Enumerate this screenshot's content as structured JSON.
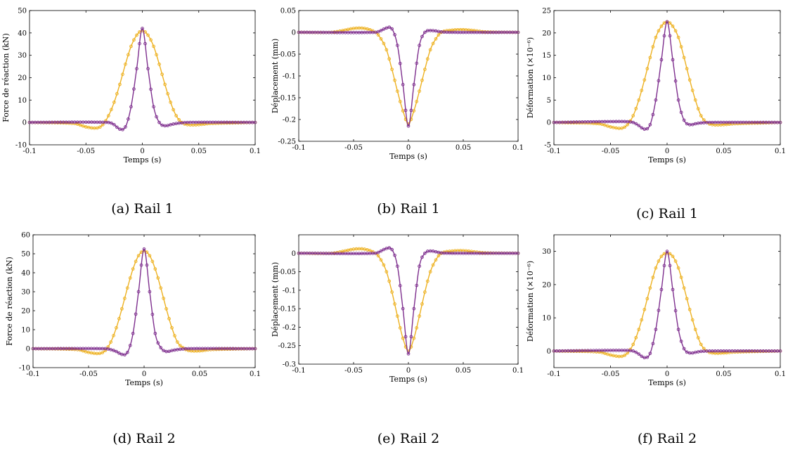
{
  "colors": {
    "series_a": "#EDB120",
    "series_b": "#7E2F8E"
  },
  "chart_data": [
    {
      "type": "line",
      "caption": "(a) Rail 1",
      "xlabel": "Temps (s)",
      "ylabel": "Force de réaction (kN)",
      "xlim": [
        -0.1,
        0.1
      ],
      "ylim": [
        -10,
        50
      ],
      "xticks": [
        -0.1,
        -0.05,
        0,
        0.05,
        0.1
      ],
      "xticklabels": [
        "-0.1",
        "-0.05",
        "0",
        "0.05",
        "0.1"
      ],
      "yticks": [
        -10,
        0,
        10,
        20,
        30,
        40,
        50
      ],
      "yticklabels": [
        "-10",
        "0",
        "10",
        "20",
        "30",
        "40",
        "50"
      ],
      "series": [
        {
          "x": [
            -0.1,
            -0.06,
            -0.05,
            -0.04,
            -0.035,
            -0.03,
            -0.025,
            -0.02,
            -0.015,
            -0.01,
            -0.005,
            0,
            0.005,
            0.01,
            0.015,
            0.02,
            0.025,
            0.03,
            0.035,
            0.04,
            0.05,
            0.06,
            0.1
          ],
          "y": [
            0,
            -0.5,
            -2,
            -2.5,
            -1,
            3,
            9,
            17,
            26,
            34,
            39,
            41,
            39,
            34,
            26,
            17,
            9,
            3,
            0,
            -1,
            -1,
            -0.5,
            0
          ]
        },
        {
          "x": [
            -0.1,
            -0.03,
            -0.025,
            -0.02,
            -0.015,
            -0.01,
            -0.005,
            0,
            0.005,
            0.01,
            0.015,
            0.02,
            0.025,
            0.03,
            0.04,
            0.1
          ],
          "y": [
            0,
            0,
            -1,
            -3,
            -2,
            7,
            24,
            42,
            24,
            7,
            0,
            -1.5,
            -1,
            -0.5,
            0,
            0
          ]
        }
      ]
    },
    {
      "type": "line",
      "caption": "(b) Rail 1",
      "xlabel": "Temps (s)",
      "ylabel": "Déplacement (mm)",
      "xlim": [
        -0.1,
        0.1
      ],
      "ylim": [
        -0.25,
        0.05
      ],
      "xticks": [
        -0.1,
        -0.05,
        0,
        0.05,
        0.1
      ],
      "xticklabels": [
        "-0.1",
        "-0.05",
        "0",
        "0.05",
        "0.1"
      ],
      "yticks": [
        -0.25,
        -0.2,
        -0.15,
        -0.1,
        -0.05,
        0,
        0.05
      ],
      "yticklabels": [
        "-0.25",
        "-0.2",
        "-0.15",
        "-0.1",
        "-0.05",
        "0",
        "0.05"
      ],
      "series": [
        {
          "x": [
            -0.1,
            -0.07,
            -0.06,
            -0.05,
            -0.04,
            -0.03,
            -0.025,
            -0.02,
            -0.015,
            -0.01,
            -0.005,
            0,
            0.005,
            0.01,
            0.015,
            0.02,
            0.025,
            0.03,
            0.04,
            0.05,
            0.06,
            0.07,
            0.1
          ],
          "y": [
            0,
            0,
            0.004,
            0.009,
            0.009,
            0.0,
            -0.015,
            -0.04,
            -0.085,
            -0.135,
            -0.18,
            -0.21,
            -0.18,
            -0.135,
            -0.085,
            -0.04,
            -0.015,
            0.0,
            0.005,
            0.006,
            0.004,
            0.001,
            0
          ]
        },
        {
          "x": [
            -0.1,
            -0.03,
            -0.025,
            -0.02,
            -0.015,
            -0.01,
            -0.005,
            0,
            0.005,
            0.01,
            0.015,
            0.02,
            0.025,
            0.03,
            0.04,
            0.1
          ],
          "y": [
            0,
            0,
            0.004,
            0.01,
            0.008,
            -0.03,
            -0.12,
            -0.215,
            -0.12,
            -0.03,
            0.0,
            0.004,
            0.003,
            0.001,
            0,
            0
          ]
        }
      ]
    },
    {
      "type": "line",
      "caption": "(c) Rail 1",
      "xlabel": "Temps (s)",
      "ylabel": "Déformation (×10⁻⁶)",
      "xlim": [
        -0.1,
        0.1
      ],
      "ylim": [
        -5,
        25
      ],
      "xticks": [
        -0.1,
        -0.05,
        0,
        0.05,
        0.1
      ],
      "xticklabels": [
        "-0.1",
        "-0.05",
        "0",
        "0.05",
        "0.1"
      ],
      "yticks": [
        -5,
        0,
        5,
        10,
        15,
        20,
        25
      ],
      "yticklabels": [
        "-5",
        "0",
        "5",
        "10",
        "15",
        "20",
        "25"
      ],
      "series": [
        {
          "x": [
            -0.1,
            -0.06,
            -0.05,
            -0.04,
            -0.035,
            -0.03,
            -0.025,
            -0.02,
            -0.015,
            -0.01,
            -0.005,
            0,
            0.005,
            0.01,
            0.015,
            0.02,
            0.025,
            0.03,
            0.035,
            0.04,
            0.05,
            0.06,
            0.1
          ],
          "y": [
            0,
            -0.3,
            -1,
            -1.3,
            -0.5,
            1.5,
            5,
            9.5,
            14.5,
            19,
            21.5,
            22.5,
            21.5,
            19,
            14.5,
            9.5,
            5,
            1.5,
            0,
            -0.5,
            -0.5,
            -0.3,
            0
          ]
        },
        {
          "x": [
            -0.1,
            -0.04,
            -0.03,
            -0.025,
            -0.02,
            -0.015,
            -0.01,
            -0.005,
            0,
            0.005,
            0.01,
            0.015,
            0.02,
            0.025,
            0.03,
            0.04,
            0.1
          ],
          "y": [
            0,
            0.2,
            0,
            -0.7,
            -1.5,
            -0.5,
            5,
            14,
            22.5,
            14,
            5,
            0.5,
            -0.5,
            -0.3,
            -0.1,
            0,
            0
          ]
        }
      ]
    },
    {
      "type": "line",
      "caption": "(d) Rail 2",
      "xlabel": "Temps (s)",
      "ylabel": "Force de réaction (kN)",
      "xlim": [
        -0.1,
        0.1
      ],
      "ylim": [
        -10,
        60
      ],
      "xticks": [
        -0.1,
        -0.05,
        0,
        0.05,
        0.1
      ],
      "xticklabels": [
        "-0.1",
        "-0.05",
        "0",
        "0.05",
        "0.1"
      ],
      "yticks": [
        -10,
        0,
        10,
        20,
        30,
        40,
        50,
        60
      ],
      "yticklabels": [
        "-10",
        "0",
        "10",
        "20",
        "30",
        "40",
        "50",
        "60"
      ],
      "series": [
        {
          "x": [
            -0.1,
            -0.06,
            -0.05,
            -0.04,
            -0.035,
            -0.03,
            -0.025,
            -0.02,
            -0.015,
            -0.01,
            -0.005,
            0,
            0.005,
            0.01,
            0.015,
            0.02,
            0.025,
            0.03,
            0.035,
            0.04,
            0.05,
            0.06,
            0.1
          ],
          "y": [
            0,
            -0.5,
            -2,
            -2.5,
            -1,
            3.5,
            11,
            21,
            32,
            42,
            49,
            51.5,
            49,
            42,
            32,
            21,
            11,
            3.5,
            0.5,
            -1,
            -1.2,
            -0.5,
            0
          ]
        },
        {
          "x": [
            -0.1,
            -0.035,
            -0.03,
            -0.025,
            -0.02,
            -0.015,
            -0.01,
            -0.005,
            0,
            0.005,
            0.01,
            0.015,
            0.02,
            0.025,
            0.03,
            0.04,
            0.1
          ],
          "y": [
            0,
            0,
            -0.5,
            -1.5,
            -3,
            -2,
            8,
            30,
            52.5,
            30,
            8,
            0.5,
            -1.5,
            -1,
            -0.5,
            0,
            0
          ]
        }
      ]
    },
    {
      "type": "line",
      "caption": "(e) Rail 2",
      "xlabel": "Temps (s)",
      "ylabel": "Déplacement (mm)",
      "xlim": [
        -0.1,
        0.1
      ],
      "ylim": [
        -0.3,
        0.05
      ],
      "xticks": [
        -0.1,
        -0.05,
        0,
        0.05,
        0.1
      ],
      "xticklabels": [
        "-0.1",
        "-0.05",
        "0",
        "0.05",
        "0.1"
      ],
      "yticks": [
        -0.3,
        -0.25,
        -0.2,
        -0.15,
        -0.1,
        -0.05,
        0
      ],
      "yticklabels": [
        "-0.3",
        "-0.25",
        "-0.2",
        "-0.15",
        "-0.1",
        "-0.05",
        "0"
      ],
      "series": [
        {
          "x": [
            -0.1,
            -0.07,
            -0.06,
            -0.05,
            -0.04,
            -0.03,
            -0.025,
            -0.02,
            -0.015,
            -0.01,
            -0.005,
            0,
            0.005,
            0.01,
            0.015,
            0.02,
            0.025,
            0.03,
            0.04,
            0.05,
            0.06,
            0.07,
            0.1
          ],
          "y": [
            0,
            0,
            0.005,
            0.011,
            0.011,
            0.0,
            -0.018,
            -0.05,
            -0.105,
            -0.17,
            -0.23,
            -0.265,
            -0.23,
            -0.17,
            -0.105,
            -0.05,
            -0.018,
            0.0,
            0.006,
            0.007,
            0.004,
            0.001,
            0
          ]
        },
        {
          "x": [
            -0.1,
            -0.03,
            -0.025,
            -0.02,
            -0.015,
            -0.01,
            -0.005,
            0,
            0.005,
            0.01,
            0.015,
            0.02,
            0.025,
            0.03,
            0.04,
            0.1
          ],
          "y": [
            0,
            0,
            0.006,
            0.013,
            0.01,
            -0.035,
            -0.15,
            -0.272,
            -0.15,
            -0.035,
            0.0,
            0.006,
            0.004,
            0.001,
            0,
            0
          ]
        }
      ]
    },
    {
      "type": "line",
      "caption": "(f) Rail 2",
      "xlabel": "Temps (s)",
      "ylabel": "Déformation (×10⁻⁶)",
      "xlim": [
        -0.1,
        0.1
      ],
      "ylim": [
        -5,
        35
      ],
      "xticks": [
        -0.1,
        -0.05,
        0,
        0.05,
        0.1
      ],
      "xticklabels": [
        "-0.1",
        "-0.05",
        "0",
        "0.05",
        "0.1"
      ],
      "yticks": [
        0,
        10,
        20,
        30
      ],
      "yticklabels": [
        "0",
        "10",
        "20",
        "30"
      ],
      "series": [
        {
          "x": [
            -0.1,
            -0.06,
            -0.05,
            -0.04,
            -0.035,
            -0.03,
            -0.025,
            -0.02,
            -0.015,
            -0.01,
            -0.005,
            0,
            0.005,
            0.01,
            0.015,
            0.02,
            0.025,
            0.03,
            0.035,
            0.04,
            0.05,
            0.06,
            0.1
          ],
          "y": [
            0,
            -0.3,
            -1.2,
            -1.6,
            -0.6,
            2,
            6.5,
            12.5,
            19,
            25,
            28.5,
            29.5,
            28.5,
            25,
            19,
            12.5,
            6.5,
            2,
            0,
            -0.6,
            -0.6,
            -0.3,
            0
          ]
        },
        {
          "x": [
            -0.1,
            -0.04,
            -0.03,
            -0.025,
            -0.02,
            -0.015,
            -0.01,
            -0.005,
            0,
            0.005,
            0.01,
            0.015,
            0.02,
            0.025,
            0.03,
            0.04,
            0.1
          ],
          "y": [
            0,
            0.2,
            0,
            -0.9,
            -2,
            -0.7,
            6.5,
            18.5,
            30,
            18.5,
            6.5,
            0.7,
            -0.6,
            -0.4,
            -0.1,
            0,
            0
          ]
        }
      ]
    }
  ]
}
